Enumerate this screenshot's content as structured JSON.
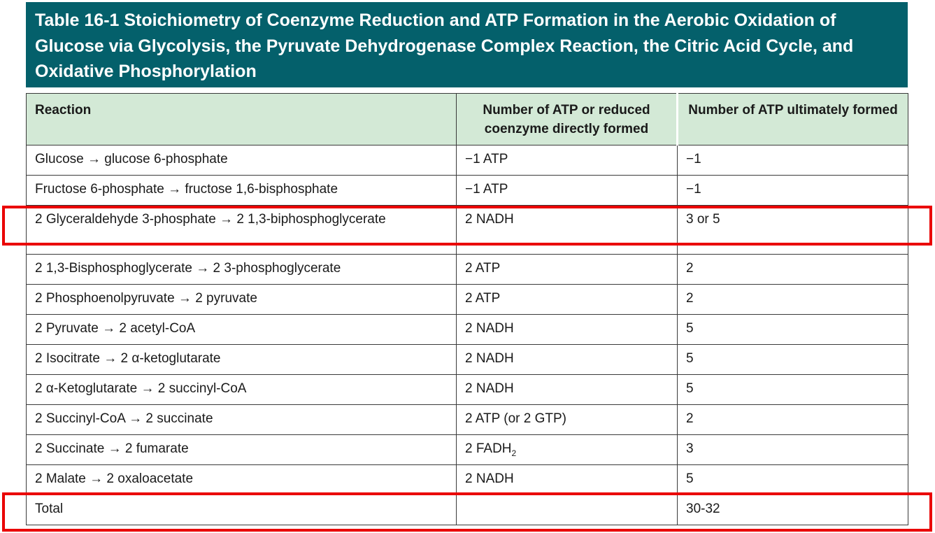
{
  "title": "Table 16-1 Stoichiometry of Coenzyme Reduction and ATP Formation in the Aerobic Oxidation of Glucose via Glycolysis, the Pyruvate Dehydrogenase Complex Reaction, the Citric Acid Cycle, and Oxidative Phosphorylation",
  "headers": {
    "reaction": "Reaction",
    "direct": "Number of ATP or reduced coenzyme directly formed",
    "ultimate": "Number of ATP ultimately formed"
  },
  "rows": [
    {
      "reaction": "Glucose → glucose 6-phosphate",
      "direct": "−1 ATP",
      "ultimate": "−1"
    },
    {
      "reaction": "Fructose 6-phosphate → fructose 1,6-bisphosphate",
      "direct": "−1 ATP",
      "ultimate": "−1"
    },
    {
      "reaction": "2 Glyceraldehyde 3-phosphate → 2 1,3-biphosphoglycerate",
      "direct": "2 NADH",
      "ultimate": "3 or 5"
    },
    {
      "reaction": "2 1,3-Bisphosphoglycerate → 2 3-phosphoglycerate",
      "direct": "2 ATP",
      "ultimate": "2"
    },
    {
      "reaction": "2 Phosphoenolpyruvate → 2 pyruvate",
      "direct": "2 ATP",
      "ultimate": "2"
    },
    {
      "reaction": "2 Pyruvate → 2 acetyl-CoA",
      "direct": "2 NADH",
      "ultimate": "5"
    },
    {
      "reaction": "2 Isocitrate → 2 α-ketoglutarate",
      "direct": "2 NADH",
      "ultimate": "5"
    },
    {
      "reaction": "2 α-Ketoglutarate → 2 succinyl-CoA",
      "direct": "2 NADH",
      "ultimate": "5"
    },
    {
      "reaction": "2 Succinyl-CoA → 2 succinate",
      "direct": "2 ATP (or 2 GTP)",
      "ultimate": "2"
    },
    {
      "reaction": "2 Succinate → 2 fumarate",
      "direct": "2 FADH",
      "direct_sub": "2",
      "ultimate": "3"
    },
    {
      "reaction": "2 Malate → 2 oxaloacetate",
      "direct": "2 NADH",
      "ultimate": "5"
    }
  ],
  "total": {
    "label": "Total",
    "direct": "",
    "ultimate": "30-32"
  },
  "colors": {
    "title_bg": "#04606b",
    "header_bg": "#d3e9d6",
    "highlight": "#ea0000"
  }
}
